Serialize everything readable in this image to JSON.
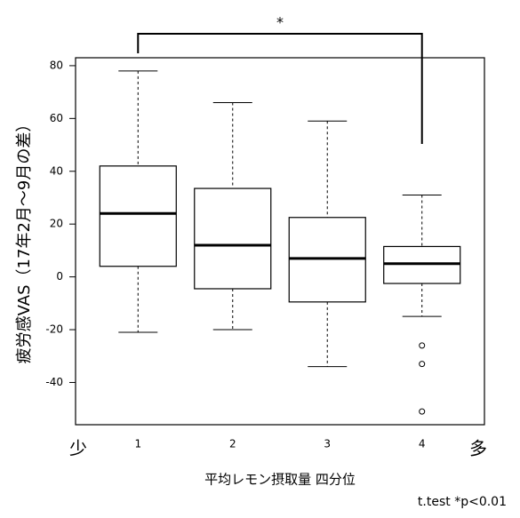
{
  "chart_data": {
    "type": "box",
    "y_label": "疲労感VAS（17年2月～9月の差）",
    "x_label": "平均レモン摂取量 四分位",
    "x_low_label": "少",
    "x_high_label": "多",
    "significance_label": "*",
    "footnote": "t.test *p<0.01",
    "categories": [
      "1",
      "2",
      "3",
      "4"
    ],
    "boxes": [
      {
        "min": -21,
        "q1": 4,
        "median": 24,
        "q3": 42,
        "max": 78,
        "outliers": []
      },
      {
        "min": -20,
        "q1": -4.5,
        "median": 12,
        "q3": 33.5,
        "max": 66,
        "outliers": []
      },
      {
        "min": -34,
        "q1": -9.5,
        "median": 7,
        "q3": 22.5,
        "max": 59,
        "outliers": []
      },
      {
        "min": -15,
        "q1": -2.5,
        "median": 5,
        "q3": 11.5,
        "max": 31,
        "outliers": [
          -26,
          -33,
          -51
        ]
      }
    ],
    "ylim": [
      -56,
      83
    ],
    "yticks": [
      -40,
      -20,
      0,
      20,
      40,
      60,
      80
    ]
  }
}
